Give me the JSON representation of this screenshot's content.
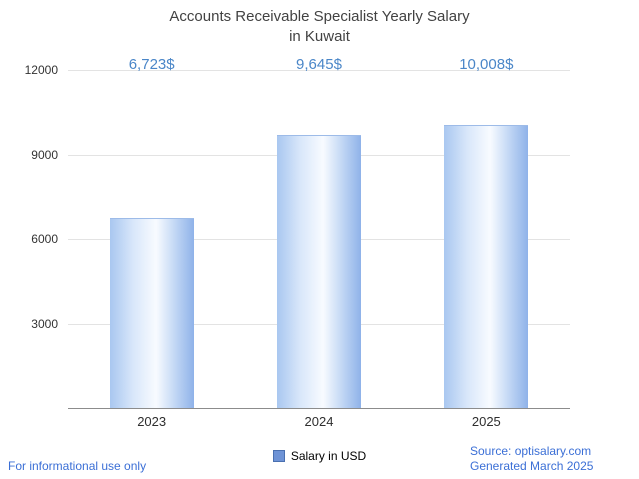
{
  "chart_data": {
    "type": "bar",
    "title_line1": "Accounts Receivable Specialist Yearly Salary",
    "title_line2": "in Kuwait",
    "categories": [
      "2023",
      "2024",
      "2025"
    ],
    "values": [
      6723,
      9645,
      10008
    ],
    "value_labels": [
      "6,723$",
      "9,645$",
      "10,008$"
    ],
    "ylim": [
      0,
      12000
    ],
    "yticks": [
      3000,
      6000,
      9000,
      12000
    ],
    "grid": true,
    "legend": {
      "label": "Salary in USD",
      "position": "bottom"
    }
  },
  "footer": {
    "disclaimer": "For informational use only",
    "source": "Source: optisalary.com",
    "generated": "Generated March 2025"
  },
  "colors": {
    "value_label": "#4a86c8",
    "bar_gradient_start": "#a9c7f0",
    "bar_gradient_end": "#8fb2e9",
    "footer_link": "#3b6fd6",
    "legend_swatch": "#6e93d6"
  }
}
